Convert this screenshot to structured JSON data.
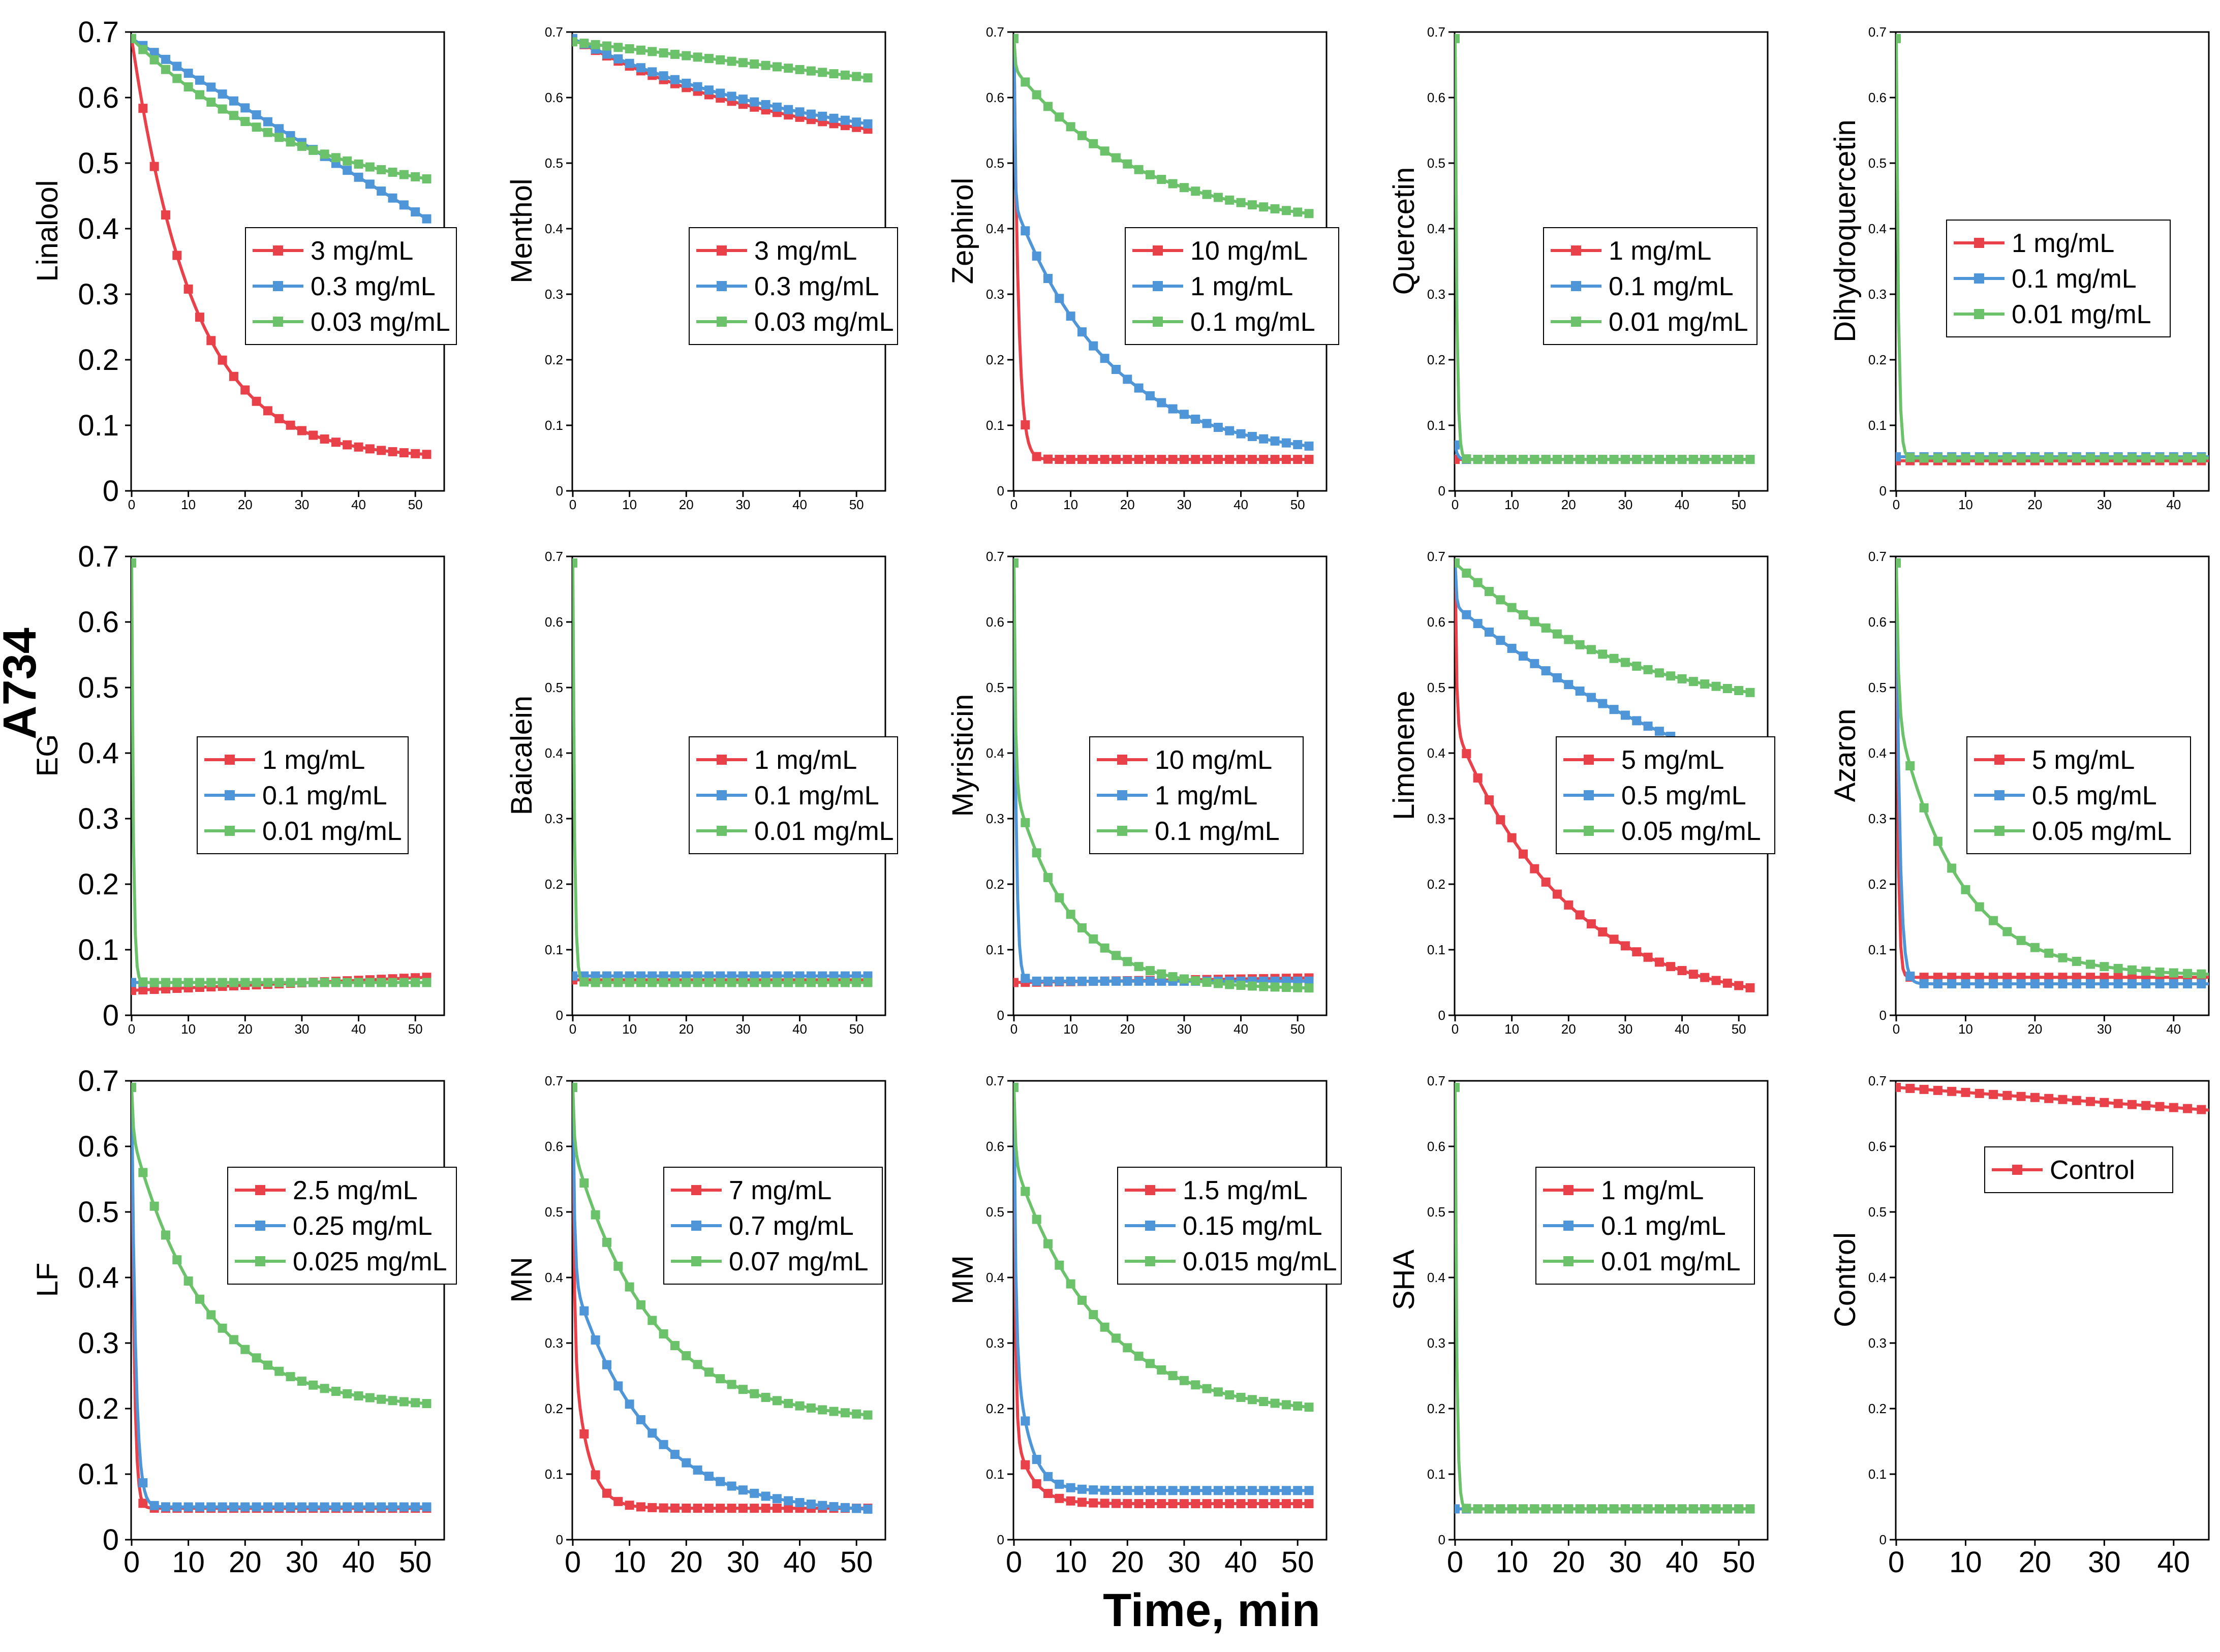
{
  "figure": {
    "row_label": "A734",
    "x_axis_label": "Time, min"
  },
  "colors": {
    "red": "#e8414a",
    "blue": "#4f96d8",
    "green": "#6cc26a"
  },
  "chart_data": [
    {
      "type": "line",
      "ylabel": "Linalool",
      "xlim": [
        0,
        55
      ],
      "ylim": [
        0,
        0.7
      ],
      "xticks": [
        0,
        10,
        20,
        30,
        40,
        50
      ],
      "yticks": [
        0,
        0.1,
        0.2,
        0.3,
        0.4,
        0.5,
        0.6,
        0.7
      ],
      "big_y": true,
      "big_x": false,
      "series": [
        {
          "name": "3 mg/mL",
          "color": "red",
          "kind": "expo",
          "start": 0.69,
          "tau": 11,
          "end": 0.05
        },
        {
          "name": "0.3 mg/mL",
          "color": "blue",
          "kind": "linear",
          "start": 0.69,
          "end": 0.415
        },
        {
          "name": "0.03 mg/mL",
          "color": "green",
          "kind": "expo",
          "start": 0.69,
          "tau": 30,
          "end": 0.43
        }
      ]
    },
    {
      "type": "line",
      "ylabel": "Menthol",
      "xlim": [
        0,
        55
      ],
      "ylim": [
        0,
        0.7
      ],
      "xticks": [
        0,
        10,
        20,
        30,
        40,
        50
      ],
      "yticks": [
        0,
        0.1,
        0.2,
        0.3,
        0.4,
        0.5,
        0.6,
        0.7
      ],
      "big_y": false,
      "big_x": false,
      "series": [
        {
          "name": "3 mg/mL",
          "color": "red",
          "kind": "expo",
          "start": 0.69,
          "tau": 40,
          "end": 0.5
        },
        {
          "name": "0.3 mg/mL",
          "color": "blue",
          "kind": "expo",
          "start": 0.69,
          "tau": 45,
          "end": 0.5
        },
        {
          "name": "0.03 mg/mL",
          "color": "green",
          "kind": "linear",
          "start": 0.685,
          "end": 0.63
        }
      ]
    },
    {
      "type": "line",
      "ylabel": "Zephirol",
      "xlim": [
        0,
        55
      ],
      "ylim": [
        0,
        0.7
      ],
      "xticks": [
        0,
        10,
        20,
        30,
        40,
        50
      ],
      "yticks": [
        0,
        0.1,
        0.2,
        0.3,
        0.4,
        0.5,
        0.6,
        0.7
      ],
      "big_y": false,
      "big_x": false,
      "series": [
        {
          "name": "10 mg/mL",
          "color": "red",
          "kind": "expo",
          "start": 0.69,
          "tau": 0.8,
          "end": 0.048
        },
        {
          "name": "1 mg/mL",
          "color": "blue",
          "kind": "twophase",
          "start": 0.69,
          "mid": 0.44,
          "tau1": 0.15,
          "tau2": 17,
          "end": 0.05
        },
        {
          "name": "0.1 mg/mL",
          "color": "green",
          "kind": "twophase",
          "start": 0.69,
          "mid": 0.645,
          "tau1": 0.2,
          "tau2": 22,
          "end": 0.4
        }
      ]
    },
    {
      "type": "line",
      "ylabel": "Quercetin",
      "xlim": [
        0,
        55
      ],
      "ylim": [
        0,
        0.7
      ],
      "xticks": [
        0,
        10,
        20,
        30,
        40,
        50
      ],
      "yticks": [
        0,
        0.1,
        0.2,
        0.3,
        0.4,
        0.5,
        0.6,
        0.7
      ],
      "big_y": false,
      "big_x": false,
      "series": [
        {
          "name": "1 mg/mL",
          "color": "red",
          "kind": "flat",
          "start": 0.048,
          "end": 0.048
        },
        {
          "name": "0.1 mg/mL",
          "color": "blue",
          "kind": "expo",
          "start": 0.07,
          "tau": 0.4,
          "end": 0.048
        },
        {
          "name": "0.01 mg/mL",
          "color": "green",
          "kind": "expo",
          "start": 0.69,
          "tau": 0.3,
          "end": 0.048
        }
      ]
    },
    {
      "type": "line",
      "ylabel": "Dihydroquercetin",
      "xlim": [
        0,
        45
      ],
      "ylim": [
        0,
        0.7
      ],
      "xticks": [
        0,
        10,
        20,
        30,
        40
      ],
      "yticks": [
        0,
        0.1,
        0.2,
        0.3,
        0.4,
        0.5,
        0.6,
        0.7
      ],
      "big_y": false,
      "big_x": false,
      "series": [
        {
          "name": "1 mg/mL",
          "color": "red",
          "kind": "flat",
          "start": 0.046,
          "end": 0.046
        },
        {
          "name": "0.1 mg/mL",
          "color": "blue",
          "kind": "flat",
          "start": 0.052,
          "end": 0.052
        },
        {
          "name": "0.01 mg/mL",
          "color": "green",
          "kind": "expo",
          "start": 0.69,
          "tau": 0.3,
          "end": 0.05
        }
      ]
    },
    {
      "type": "line",
      "ylabel": "EG",
      "xlim": [
        0,
        55
      ],
      "ylim": [
        0,
        0.7
      ],
      "xticks": [
        0,
        10,
        20,
        30,
        40,
        50
      ],
      "yticks": [
        0,
        0.1,
        0.2,
        0.3,
        0.4,
        0.5,
        0.6,
        0.7
      ],
      "big_y": true,
      "big_x": false,
      "series": [
        {
          "name": "1 mg/mL",
          "color": "red",
          "kind": "linear",
          "start": 0.038,
          "end": 0.058
        },
        {
          "name": "0.1 mg/mL",
          "color": "blue",
          "kind": "flat",
          "start": 0.05,
          "end": 0.05
        },
        {
          "name": "0.01 mg/mL",
          "color": "green",
          "kind": "expo",
          "start": 0.69,
          "tau": 0.3,
          "end": 0.05
        }
      ]
    },
    {
      "type": "line",
      "ylabel": "Baicalein",
      "xlim": [
        0,
        55
      ],
      "ylim": [
        0,
        0.7
      ],
      "xticks": [
        0,
        10,
        20,
        30,
        40,
        50
      ],
      "yticks": [
        0,
        0.1,
        0.2,
        0.3,
        0.4,
        0.5,
        0.6,
        0.7
      ],
      "big_y": false,
      "big_x": false,
      "series": [
        {
          "name": "1 mg/mL",
          "color": "red",
          "kind": "flat",
          "start": 0.054,
          "end": 0.054
        },
        {
          "name": "0.1 mg/mL",
          "color": "blue",
          "kind": "flat",
          "start": 0.06,
          "end": 0.06
        },
        {
          "name": "0.01 mg/mL",
          "color": "green",
          "kind": "expo",
          "start": 0.69,
          "tau": 0.3,
          "end": 0.05
        }
      ]
    },
    {
      "type": "line",
      "ylabel": "Myristicin",
      "xlim": [
        0,
        55
      ],
      "ylim": [
        0,
        0.7
      ],
      "xticks": [
        0,
        10,
        20,
        30,
        40,
        50
      ],
      "yticks": [
        0,
        0.1,
        0.2,
        0.3,
        0.4,
        0.5,
        0.6,
        0.7
      ],
      "big_y": false,
      "big_x": false,
      "series": [
        {
          "name": "10 mg/mL",
          "color": "red",
          "kind": "linear",
          "start": 0.05,
          "end": 0.057
        },
        {
          "name": "1 mg/mL",
          "color": "blue",
          "kind": "expo",
          "start": 0.69,
          "tau": 0.4,
          "end": 0.052
        },
        {
          "name": "0.1 mg/mL",
          "color": "green",
          "kind": "twophase",
          "start": 0.69,
          "mid": 0.35,
          "tau1": 0.25,
          "tau2": 10,
          "end": 0.04
        }
      ]
    },
    {
      "type": "line",
      "ylabel": "Limonene",
      "xlim": [
        0,
        55
      ],
      "ylim": [
        0,
        0.7
      ],
      "xticks": [
        0,
        10,
        20,
        30,
        40,
        50
      ],
      "yticks": [
        0,
        0.1,
        0.2,
        0.3,
        0.4,
        0.5,
        0.6,
        0.7
      ],
      "big_y": false,
      "big_x": false,
      "series": [
        {
          "name": "5 mg/mL",
          "color": "red",
          "kind": "twophase",
          "start": 0.69,
          "mid": 0.44,
          "tau1": 0.25,
          "tau2": 20,
          "end": 0.01
        },
        {
          "name": "0.5 mg/mL",
          "color": "blue",
          "kind": "twophase",
          "start": 0.69,
          "mid": 0.625,
          "tau1": 0.2,
          "tau2": 60,
          "end": 0.2
        },
        {
          "name": "0.05 mg/mL",
          "color": "green",
          "kind": "expo",
          "start": 0.69,
          "tau": 30,
          "end": 0.45
        }
      ]
    },
    {
      "type": "line",
      "ylabel": "Azaron",
      "xlim": [
        0,
        45
      ],
      "ylim": [
        0,
        0.7
      ],
      "xticks": [
        0,
        10,
        20,
        30,
        40
      ],
      "yticks": [
        0,
        0.1,
        0.2,
        0.3,
        0.4,
        0.5,
        0.6,
        0.7
      ],
      "big_y": false,
      "big_x": false,
      "series": [
        {
          "name": "5 mg/mL",
          "color": "red",
          "kind": "expo",
          "start": 0.69,
          "tau": 0.25,
          "end": 0.058
        },
        {
          "name": "0.5 mg/mL",
          "color": "blue",
          "kind": "expo",
          "start": 0.69,
          "tau": 0.5,
          "end": 0.048
        },
        {
          "name": "0.05 mg/mL",
          "color": "green",
          "kind": "twophase",
          "start": 0.69,
          "mid": 0.46,
          "tau1": 0.3,
          "tau2": 9,
          "end": 0.06
        }
      ]
    },
    {
      "type": "line",
      "ylabel": "LF",
      "xlim": [
        0,
        55
      ],
      "ylim": [
        0,
        0.7
      ],
      "xticks": [
        0,
        10,
        20,
        30,
        40,
        50
      ],
      "yticks": [
        0,
        0.1,
        0.2,
        0.3,
        0.4,
        0.5,
        0.6,
        0.7
      ],
      "big_y": true,
      "big_x": true,
      "series": [
        {
          "name": "2.5 mg/mL",
          "color": "red",
          "kind": "expo",
          "start": 0.69,
          "tau": 0.45,
          "end": 0.048
        },
        {
          "name": "0.25 mg/mL",
          "color": "blue",
          "kind": "expo",
          "start": 0.69,
          "tau": 0.7,
          "end": 0.05
        },
        {
          "name": "0.025 mg/mL",
          "color": "green",
          "kind": "twophase",
          "start": 0.69,
          "mid": 0.62,
          "tau1": 0.25,
          "tau2": 13,
          "end": 0.2
        }
      ]
    },
    {
      "type": "line",
      "ylabel": "MN",
      "xlim": [
        0,
        55
      ],
      "ylim": [
        0,
        0.7
      ],
      "xticks": [
        0,
        10,
        20,
        30,
        40,
        50
      ],
      "yticks": [
        0,
        0.1,
        0.2,
        0.3,
        0.4,
        0.5,
        0.6,
        0.7
      ],
      "big_y": false,
      "big_x": true,
      "series": [
        {
          "name": "7 mg/mL",
          "color": "red",
          "kind": "twophase",
          "start": 0.69,
          "mid": 0.3,
          "tau1": 0.25,
          "tau2": 2.5,
          "end": 0.048
        },
        {
          "name": "0.7 mg/mL",
          "color": "blue",
          "kind": "twophase",
          "start": 0.69,
          "mid": 0.4,
          "tau1": 0.3,
          "tau2": 13,
          "end": 0.04
        },
        {
          "name": "0.07 mg/mL",
          "color": "green",
          "kind": "twophase",
          "start": 0.69,
          "mid": 0.6,
          "tau1": 0.25,
          "tau2": 14,
          "end": 0.18
        }
      ]
    },
    {
      "type": "line",
      "ylabel": "MM",
      "xlim": [
        0,
        55
      ],
      "ylim": [
        0,
        0.7
      ],
      "xticks": [
        0,
        10,
        20,
        30,
        40,
        50
      ],
      "yticks": [
        0,
        0.1,
        0.2,
        0.3,
        0.4,
        0.5,
        0.6,
        0.7
      ],
      "big_y": false,
      "big_x": true,
      "series": [
        {
          "name": "1.5 mg/mL",
          "color": "red",
          "kind": "twophase",
          "start": 0.69,
          "mid": 0.17,
          "tau1": 0.25,
          "tau2": 3,
          "end": 0.055
        },
        {
          "name": "0.15 mg/mL",
          "color": "blue",
          "kind": "twophase",
          "start": 0.69,
          "mid": 0.31,
          "tau1": 0.3,
          "tau2": 2.5,
          "end": 0.075
        },
        {
          "name": "0.015 mg/mL",
          "color": "green",
          "kind": "twophase",
          "start": 0.69,
          "mid": 0.58,
          "tau1": 0.25,
          "tau2": 15,
          "end": 0.19
        }
      ]
    },
    {
      "type": "line",
      "ylabel": "SHA",
      "xlim": [
        0,
        55
      ],
      "ylim": [
        0,
        0.7
      ],
      "xticks": [
        0,
        10,
        20,
        30,
        40,
        50
      ],
      "yticks": [
        0,
        0.1,
        0.2,
        0.3,
        0.4,
        0.5,
        0.6,
        0.7
      ],
      "big_y": false,
      "big_x": true,
      "series": [
        {
          "name": "1 mg/mL",
          "color": "red",
          "kind": "flat",
          "start": 0.047,
          "end": 0.047
        },
        {
          "name": "0.1 mg/mL",
          "color": "blue",
          "kind": "flat",
          "start": 0.047,
          "end": 0.047
        },
        {
          "name": "0.01 mg/mL",
          "color": "green",
          "kind": "expo",
          "start": 0.69,
          "tau": 0.3,
          "end": 0.047
        }
      ]
    },
    {
      "type": "line",
      "ylabel": "Control",
      "xlim": [
        0,
        45
      ],
      "ylim": [
        0,
        0.7
      ],
      "xticks": [
        0,
        10,
        20,
        30,
        40
      ],
      "yticks": [
        0,
        0.1,
        0.2,
        0.3,
        0.4,
        0.5,
        0.6,
        0.7
      ],
      "big_y": false,
      "big_x": true,
      "series": [
        {
          "name": "Control",
          "color": "red",
          "kind": "linear",
          "start": 0.69,
          "end": 0.65
        }
      ]
    }
  ]
}
